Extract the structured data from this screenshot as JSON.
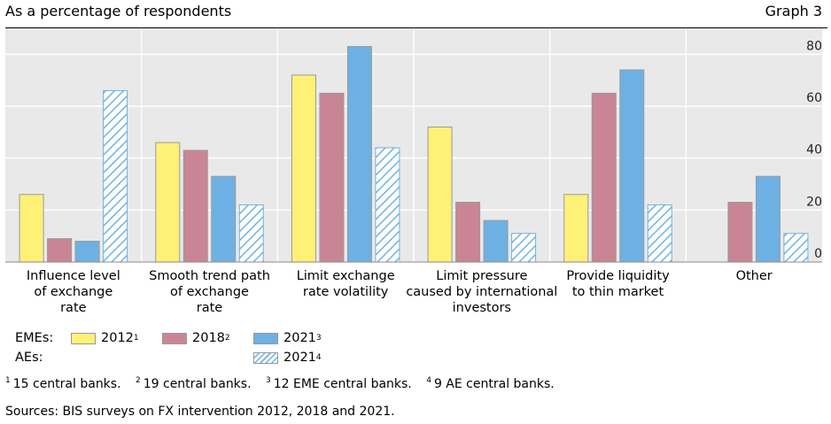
{
  "header": {
    "subtitle": "As a percentage of respondents",
    "graph_label": "Graph 3"
  },
  "chart_data": {
    "type": "bar",
    "categories": [
      [
        "Influence level",
        "of exchange",
        "rate"
      ],
      [
        "Smooth trend path",
        "of exchange",
        "rate"
      ],
      [
        "Limit exchange",
        "rate volatility"
      ],
      [
        "Limit pressure",
        "caused by international",
        "investors"
      ],
      [
        "Provide liquidity",
        "to thin market"
      ],
      [
        "Other"
      ]
    ],
    "series": [
      {
        "name": "2012",
        "sup": "1",
        "group": "EMEs",
        "color": "#fff176",
        "values": [
          26,
          46,
          72,
          52,
          26,
          0
        ]
      },
      {
        "name": "2018",
        "sup": "2",
        "group": "EMEs",
        "color": "#c98594",
        "values": [
          9,
          43,
          65,
          23,
          65,
          23
        ]
      },
      {
        "name": "2021",
        "sup": "3",
        "group": "EMEs",
        "color": "#6db1e4",
        "values": [
          8,
          33,
          83,
          16,
          74,
          33
        ]
      },
      {
        "name": "2021",
        "sup": "4",
        "group": "AEs",
        "color": "#6db1e4",
        "pattern": "hatched",
        "values": [
          66,
          22,
          44,
          11,
          22,
          11
        ]
      }
    ],
    "yticks": [
      0,
      20,
      40,
      60,
      80
    ],
    "ylim": [
      0,
      90
    ],
    "grid": true,
    "background": "#e9e9e9"
  },
  "legend": {
    "emes_label": "EMEs:",
    "aes_label": "AEs:"
  },
  "footnotes": [
    {
      "num": "1",
      "text": "15 central banks."
    },
    {
      "num": "2",
      "text": "19 central banks."
    },
    {
      "num": "3",
      "text": "12 EME central banks."
    },
    {
      "num": "4",
      "text": "9 AE central banks."
    }
  ],
  "sources": "Sources: BIS surveys on FX intervention 2012, 2018 and 2021."
}
